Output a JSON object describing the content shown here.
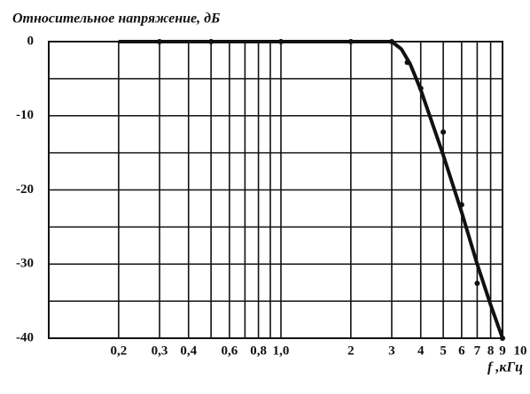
{
  "chart_data": {
    "type": "line",
    "title": "Относительное напряжение, дБ",
    "x_label": "f ,кГц",
    "log_x": true,
    "xlim": [
      0.1,
      9
    ],
    "xticks": [
      {
        "value": 0.2,
        "label": "0,2"
      },
      {
        "value": 0.3,
        "label": "0,3"
      },
      {
        "value": 0.4,
        "label": "0,4"
      },
      {
        "value": 0.6,
        "label": "0,6"
      },
      {
        "value": 0.8,
        "label": "0,8"
      },
      {
        "value": 1,
        "label": "1,0"
      },
      2,
      3,
      4,
      5,
      6,
      7,
      8,
      9,
      10
    ],
    "x_grid_minor": [
      0.5,
      0.7,
      0.9
    ],
    "ylim": [
      -40,
      0
    ],
    "yticks": [
      0,
      -10,
      -20,
      -30,
      -40
    ],
    "y_grid_minor": [
      -5,
      -15,
      -25,
      -35
    ],
    "grid": true,
    "series": [
      {
        "style": "markers",
        "color": "#111",
        "x": [
          0.3,
          0.5,
          1,
          2,
          3,
          3.5,
          4,
          5,
          6,
          7,
          9
        ],
        "values": [
          0,
          0,
          0,
          0,
          0,
          -2.8,
          -6.3,
          -12.2,
          -22,
          -32.6,
          -40
        ]
      },
      {
        "style": "line",
        "color": "#111",
        "x": [
          0.2,
          3,
          3.3,
          3.6,
          4,
          5,
          6,
          7,
          8,
          9
        ],
        "values": [
          0,
          0,
          -1,
          -3,
          -6.5,
          -15.3,
          -23,
          -30,
          -35.5,
          -40
        ]
      }
    ]
  }
}
